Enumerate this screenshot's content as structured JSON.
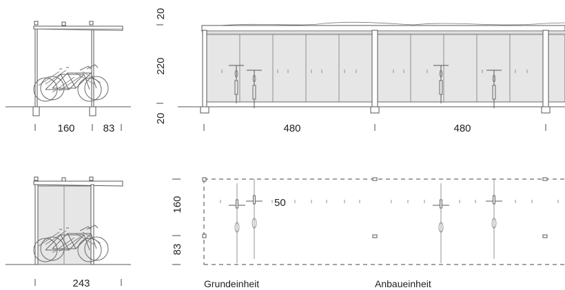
{
  "side_view": {
    "dims": [
      "160",
      "83"
    ]
  },
  "front_view": {
    "height_dims": [
      "20",
      "220",
      "20"
    ],
    "width_dims": [
      "480",
      "480"
    ]
  },
  "side_closed_view": {
    "dims": [
      "243"
    ]
  },
  "plan_view": {
    "depth_dims": [
      "160",
      "83"
    ],
    "spacing_dim": "50",
    "labels": [
      "Grundeinheit",
      "Anbaueinheit"
    ]
  }
}
